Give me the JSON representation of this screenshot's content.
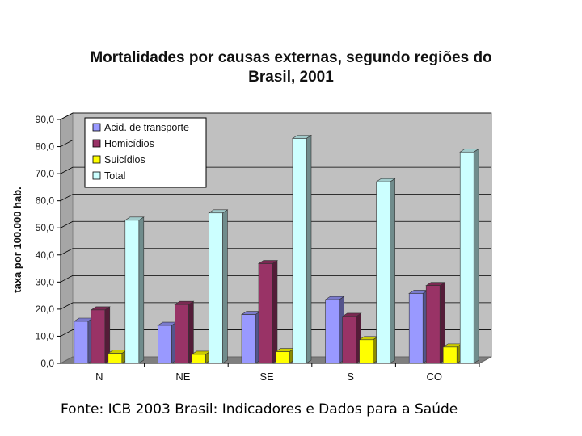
{
  "chart_data": {
    "type": "bar",
    "title": "Mortalidades por causas externas, segundo regiões do Brasil, 2001",
    "title_lines": [
      "Mortalidades por causas externas, segundo regiões do",
      "Brasil, 2001"
    ],
    "xlabel": "",
    "ylabel": "taxa por 100.000 hab.",
    "ylim": [
      0,
      90
    ],
    "yticks": [
      "0,0",
      "10,0",
      "20,0",
      "30,0",
      "40,0",
      "50,0",
      "60,0",
      "70,0",
      "80,0",
      "90,0"
    ],
    "categories": [
      "N",
      "NE",
      "SE",
      "S",
      "CO"
    ],
    "series": [
      {
        "name": "Acid. de transporte",
        "color": "#9999ff",
        "values": [
          15.5,
          14.0,
          18.0,
          23.5,
          25.8
        ]
      },
      {
        "name": "Homicídios",
        "color": "#993366",
        "values": [
          19.7,
          21.7,
          36.8,
          17.3,
          28.7
        ]
      },
      {
        "name": "Suicídios",
        "color": "#ffff00",
        "values": [
          3.7,
          3.3,
          4.3,
          8.7,
          6.0
        ]
      },
      {
        "name": "Total",
        "color": "#ccffff",
        "values": [
          52.8,
          55.5,
          83.0,
          67.0,
          78.0
        ]
      }
    ],
    "grid": true,
    "legend": "top-left"
  },
  "source": "Fonte: ICB 2003 Brasil: Indicadores e Dados para a Saúde"
}
